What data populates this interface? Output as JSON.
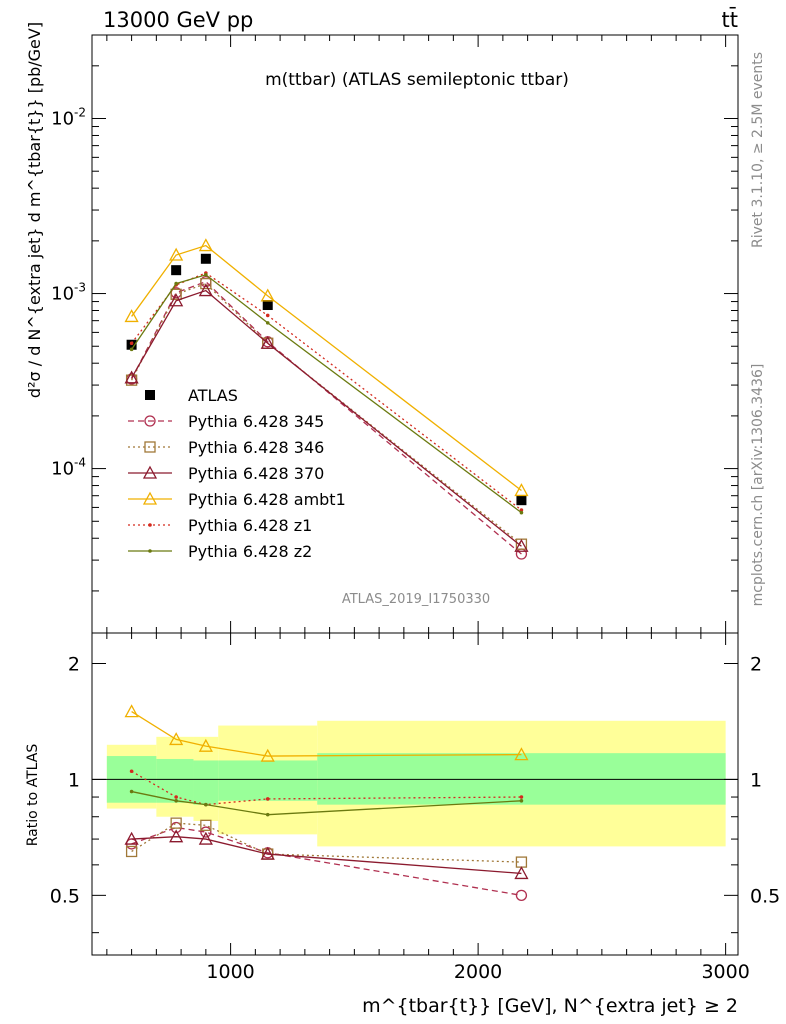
{
  "header": {
    "left": "13000 GeV pp",
    "right": "tt̄"
  },
  "plot_title": "m(ttbar) (ATLAS semileptonic ttbar)",
  "analysis_id": "ATLAS_2019_I1750330",
  "side_labels": {
    "rivet": "Rivet 3.1.10, ≥ 2.5M events",
    "mcplots": "mcplots.cern.ch [arXiv:1306.3436]"
  },
  "axes": {
    "main_ylabel": "d²σ / d N^{extra jet} d m^{tbar{t}} [pb/GeV]",
    "ratio_ylabel": "Ratio to ATLAS",
    "xlabel": "m^{tbar{t}} [GeV], N^{extra jet} ≥ 2",
    "x_ticks": [
      "1000",
      "2000",
      "3000"
    ],
    "main_y_ticks": [
      "10^{-4}",
      "10^{-3}",
      "10^{-2}"
    ],
    "ratio_y_ticks": [
      "0.5",
      "1",
      "2"
    ]
  },
  "colors": {
    "atlas": "#000000",
    "p345": "#b03050",
    "p346": "#a07838",
    "p370": "#8b1a2e",
    "ambt1": "#f0b000",
    "z1": "#d42a1e",
    "z2": "#6b7a10",
    "band_green": "#99ff99",
    "band_yellow": "#ffff99"
  },
  "chart_data": {
    "type": "line",
    "x_scale": "linear",
    "y_scale": "log",
    "xlim": [
      440,
      3050
    ],
    "ylim": [
      1.15e-05,
      0.03
    ],
    "ratio_ylim": [
      0.35,
      2.4
    ],
    "x": [
      600,
      780,
      900,
      1150,
      2175
    ],
    "x_edges": [
      500,
      700,
      850,
      950,
      1350,
      3000
    ],
    "series": [
      {
        "name": "ATLAS",
        "key": "atlas",
        "marker": "square",
        "dash": "",
        "values": [
          0.00051,
          0.00136,
          0.00158,
          0.00086,
          6.6e-05
        ],
        "ratio": [
          1,
          1,
          1,
          1,
          1
        ]
      },
      {
        "name": "Pythia 6.428 345",
        "key": "p345",
        "marker": "circle",
        "dash": "6,4",
        "values": [
          0.000325,
          0.00101,
          0.00117,
          0.00053,
          3.25e-05
        ],
        "ratio": [
          0.68,
          0.75,
          0.73,
          0.645,
          0.5
        ]
      },
      {
        "name": "Pythia 6.428 346",
        "key": "p346",
        "marker": "square-open",
        "dash": "2,3",
        "values": [
          0.00032,
          0.00099,
          0.00114,
          0.00052,
          3.7e-05
        ],
        "ratio": [
          0.65,
          0.77,
          0.76,
          0.64,
          0.61
        ]
      },
      {
        "name": "Pythia 6.428 370",
        "key": "p370",
        "marker": "triangle",
        "dash": "",
        "values": [
          0.00033,
          0.00091,
          0.00104,
          0.00052,
          3.6e-05
        ],
        "ratio": [
          0.7,
          0.71,
          0.7,
          0.64,
          0.57
        ]
      },
      {
        "name": "Pythia 6.428 ambt1",
        "key": "ambt1",
        "marker": "triangle",
        "dash": "",
        "values": [
          0.00074,
          0.00166,
          0.00188,
          0.00097,
          7.5e-05
        ],
        "ratio": [
          1.5,
          1.27,
          1.22,
          1.15,
          1.16
        ]
      },
      {
        "name": "Pythia 6.428 z1",
        "key": "z1",
        "marker": "dot",
        "dash": "2,3",
        "values": [
          0.00052,
          0.00112,
          0.00131,
          0.00075,
          5.8e-05
        ],
        "ratio": [
          1.05,
          0.9,
          0.86,
          0.89,
          0.9
        ]
      },
      {
        "name": "Pythia 6.428 z2",
        "key": "z2",
        "marker": "dot",
        "dash": "",
        "values": [
          0.00048,
          0.00114,
          0.00128,
          0.00068,
          5.6e-05
        ],
        "ratio": [
          0.93,
          0.88,
          0.86,
          0.81,
          0.88
        ]
      }
    ],
    "ratio_band_inner": [
      [
        0.87,
        1.15
      ],
      [
        0.87,
        1.13
      ],
      [
        0.86,
        1.12
      ],
      [
        0.88,
        1.12
      ],
      [
        0.86,
        1.17
      ]
    ],
    "ratio_band_outer": [
      [
        0.84,
        1.23
      ],
      [
        0.8,
        1.29
      ],
      [
        0.78,
        1.29
      ],
      [
        0.72,
        1.38
      ],
      [
        0.67,
        1.42
      ]
    ],
    "legend_position": "lower-left"
  }
}
